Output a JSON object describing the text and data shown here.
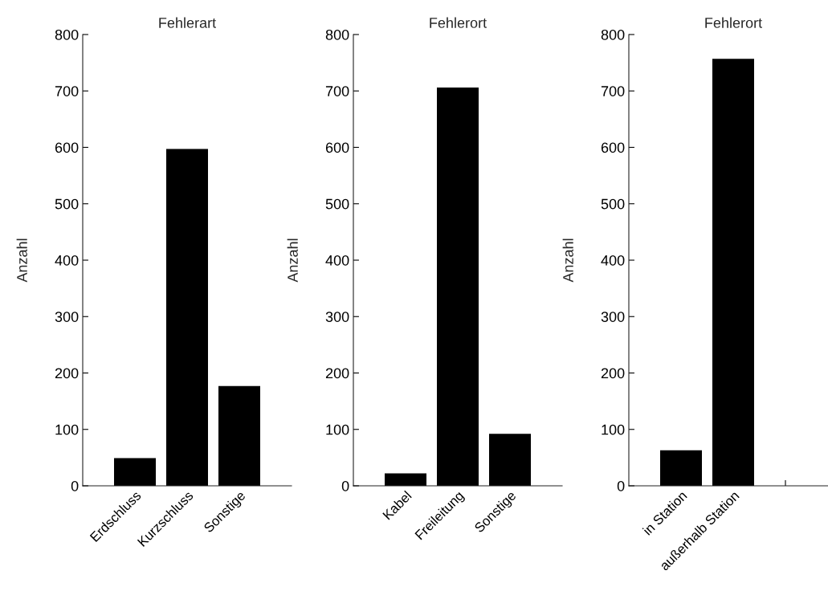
{
  "chart_data": [
    {
      "type": "bar",
      "title": "Fehlerart",
      "ylabel": "Anzahl",
      "categories": [
        "Erdschluss",
        "Kurzschluss",
        "Sonstige"
      ],
      "values": [
        49,
        597,
        177
      ],
      "color": "#000000",
      "ylim": [
        0,
        800
      ],
      "yticks": [
        0,
        100,
        200,
        300,
        400,
        500,
        600,
        700,
        800
      ],
      "grid": false,
      "legend": false
    },
    {
      "type": "bar",
      "title": "Fehlerort",
      "ylabel": "Anzahl",
      "categories": [
        "Kabel",
        "Freileitung",
        "Sonstige"
      ],
      "values": [
        22,
        706,
        92
      ],
      "color": "#000000",
      "ylim": [
        0,
        800
      ],
      "yticks": [
        0,
        100,
        200,
        300,
        400,
        500,
        600,
        700,
        800
      ],
      "grid": false,
      "legend": false
    },
    {
      "type": "bar",
      "title": "Fehlerort",
      "ylabel": "Anzahl",
      "categories": [
        "in Station",
        "außerhalb Station",
        null
      ],
      "values": [
        63,
        757,
        null
      ],
      "color": "#000000",
      "ylim": [
        0,
        800
      ],
      "yticks": [
        0,
        100,
        200,
        300,
        400,
        500,
        600,
        700,
        800
      ],
      "grid": false,
      "legend": false
    }
  ]
}
